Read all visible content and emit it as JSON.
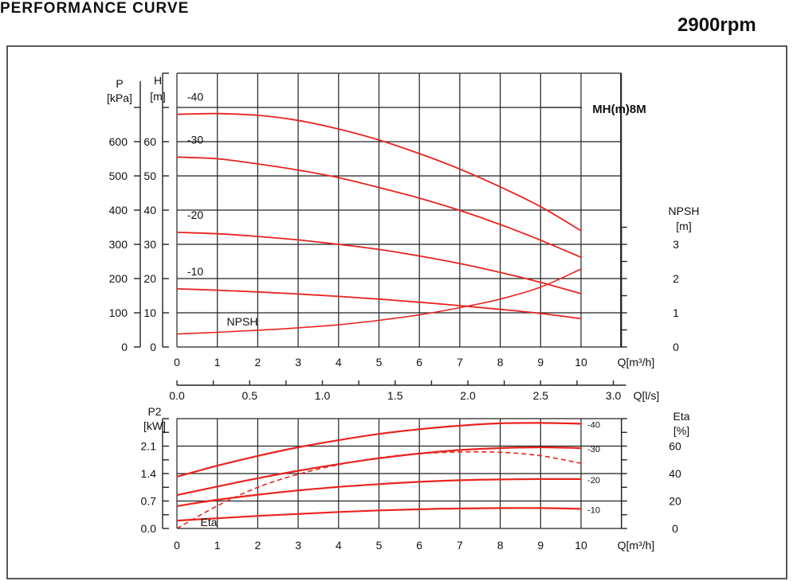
{
  "page": {
    "title": "PERFORMANCE CURVE",
    "speed": "2900rpm",
    "model": "MH(m)8M"
  },
  "colors": {
    "curve": "#e8241f",
    "grid": "#222222"
  },
  "chart_data": [
    {
      "type": "line",
      "name": "Head / NPSH",
      "x": [
        0,
        1,
        2,
        3,
        4,
        5,
        6,
        7,
        8,
        9,
        10
      ],
      "xlabel": "Q[m³/h]",
      "xlim": [
        0,
        11
      ],
      "xticks": [
        0,
        1,
        2,
        3,
        4,
        5,
        6,
        7,
        8,
        9,
        10
      ],
      "secondary_x": {
        "label": "Q[l/s]",
        "ticks": [
          "0.0",
          "0.5",
          "1.0",
          "1.5",
          "2.0",
          "2.5",
          "3.0"
        ],
        "values": [
          0.0,
          0.5,
          1.0,
          1.5,
          2.0,
          2.5,
          3.0
        ]
      },
      "ylabel_left_outer": [
        "P",
        "[kPa]"
      ],
      "yticks_left_outer": [
        "0",
        "100",
        "200",
        "300",
        "400",
        "500",
        "600"
      ],
      "ylabel_left": [
        "H",
        "[m]"
      ],
      "yticks_left": [
        "0",
        "10",
        "20",
        "30",
        "40",
        "50",
        "60"
      ],
      "ylim": [
        0,
        80
      ],
      "ylabel_right": [
        "NPSH",
        "[m]"
      ],
      "yticks_right": [
        "0",
        "1",
        "2",
        "3"
      ],
      "ylim_right": [
        0,
        8
      ],
      "series": [
        {
          "name": "-40",
          "axis": "left",
          "values": [
            68,
            68.2,
            67.7,
            66.2,
            63.7,
            60.5,
            56.5,
            52.0,
            46.8,
            41.0,
            34.0
          ]
        },
        {
          "name": "-30",
          "axis": "left",
          "values": [
            55.5,
            55.0,
            53.5,
            51.7,
            49.5,
            46.6,
            43.5,
            39.9,
            35.8,
            31.2,
            26.2
          ]
        },
        {
          "name": "-20",
          "axis": "left",
          "values": [
            33.5,
            33.1,
            32.3,
            31.3,
            30.0,
            28.5,
            26.6,
            24.4,
            21.8,
            18.9,
            15.6
          ]
        },
        {
          "name": "-10",
          "axis": "left",
          "values": [
            17.0,
            16.6,
            16.1,
            15.5,
            14.8,
            14.0,
            13.1,
            12.1,
            11.0,
            9.8,
            8.3
          ]
        },
        {
          "name": "NPSH",
          "axis": "right",
          "values": [
            0.38,
            0.43,
            0.49,
            0.56,
            0.65,
            0.78,
            0.94,
            1.15,
            1.4,
            1.75,
            2.28
          ]
        }
      ]
    },
    {
      "type": "line",
      "name": "Power / Efficiency",
      "x": [
        0,
        1,
        2,
        3,
        4,
        5,
        6,
        7,
        8,
        9,
        10
      ],
      "xlabel": "Q[m³/h]",
      "xlim": [
        0,
        11
      ],
      "xticks": [
        0,
        1,
        2,
        3,
        4,
        5,
        6,
        7,
        8,
        9,
        10
      ],
      "ylabel_left": [
        "P2",
        "[kW]"
      ],
      "yticks_left": [
        "0.0",
        "0.7",
        "1.4",
        "2.1"
      ],
      "ylim": [
        0,
        2.8
      ],
      "ylabel_right": [
        "Eta",
        "[%]"
      ],
      "yticks_right": [
        "0",
        "20",
        "40",
        "60"
      ],
      "ylim_right": [
        0,
        80
      ],
      "series": [
        {
          "name": "-40",
          "axis": "left",
          "values": [
            1.32,
            1.6,
            1.85,
            2.07,
            2.25,
            2.41,
            2.53,
            2.62,
            2.68,
            2.69,
            2.67
          ]
        },
        {
          "name": "-30",
          "axis": "left",
          "values": [
            0.85,
            1.07,
            1.28,
            1.47,
            1.64,
            1.79,
            1.91,
            2.0,
            2.05,
            2.07,
            2.05
          ]
        },
        {
          "name": "-20",
          "axis": "left",
          "values": [
            0.57,
            0.73,
            0.86,
            0.97,
            1.06,
            1.13,
            1.19,
            1.23,
            1.25,
            1.26,
            1.26
          ]
        },
        {
          "name": "-10",
          "axis": "left",
          "values": [
            0.2,
            0.26,
            0.32,
            0.37,
            0.42,
            0.46,
            0.49,
            0.51,
            0.52,
            0.52,
            0.5
          ]
        },
        {
          "name": "Eta",
          "axis": "right",
          "dashed": true,
          "values": [
            0,
            16.5,
            30.0,
            39.5,
            46.5,
            51.5,
            54.5,
            55.7,
            55.5,
            53.0,
            47.5
          ]
        }
      ]
    }
  ]
}
